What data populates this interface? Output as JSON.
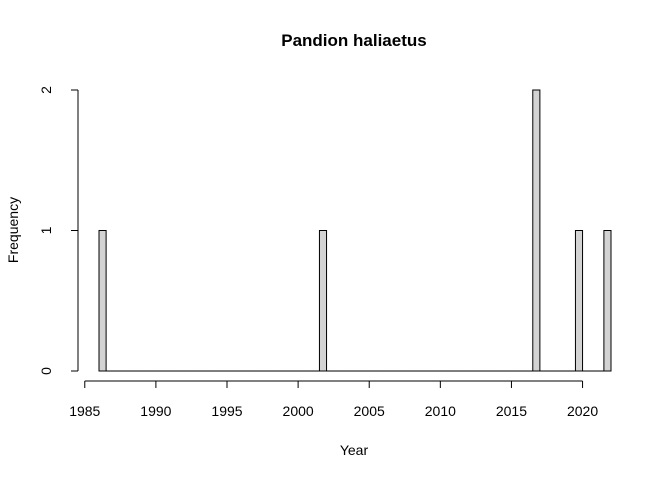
{
  "chart_data": {
    "type": "bar",
    "title": "Pandion haliaetus",
    "xlabel": "Year",
    "ylabel": "Frequency",
    "bar_fill": "#d3d3d3",
    "bar_stroke": "#000000",
    "bin_width": 0.5,
    "xlim": [
      1986.0,
      2022.0
    ],
    "ylim": [
      0,
      2
    ],
    "x_ticks": [
      1985,
      1990,
      1995,
      2000,
      2005,
      2010,
      2015,
      2020
    ],
    "x_tick_labels": [
      "1985",
      "1990",
      "1995",
      "2000",
      "2005",
      "2010",
      "2015",
      "2020"
    ],
    "y_ticks": [
      0,
      1,
      2
    ],
    "y_tick_labels": [
      "0",
      "1",
      "2"
    ],
    "nonzero_bins": [
      {
        "start": 1986.0,
        "end": 1986.5,
        "count": 1
      },
      {
        "start": 2001.5,
        "end": 2002.0,
        "count": 1
      },
      {
        "start": 2016.5,
        "end": 2017.0,
        "count": 2
      },
      {
        "start": 2019.5,
        "end": 2020.0,
        "count": 1
      },
      {
        "start": 2021.5,
        "end": 2022.0,
        "count": 1
      }
    ],
    "grid": false,
    "legend": "none"
  }
}
